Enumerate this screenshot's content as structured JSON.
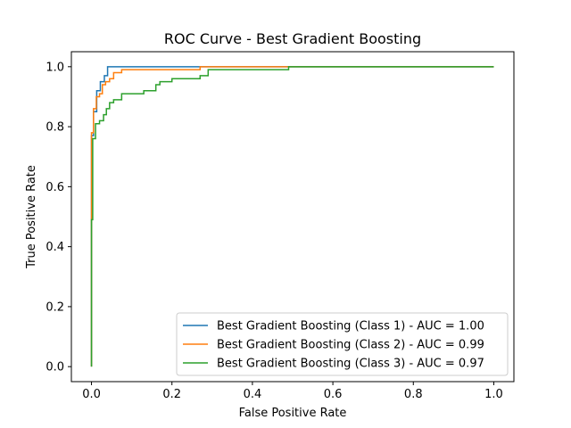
{
  "chart_data": {
    "type": "line",
    "title": "ROC Curve - Best Gradient Boosting",
    "xlabel": "False Positive Rate",
    "ylabel": "True Positive Rate",
    "xlim": [
      -0.05,
      1.05
    ],
    "ylim": [
      -0.05,
      1.05
    ],
    "xticks": [
      0.0,
      0.2,
      0.4,
      0.6,
      0.8,
      1.0
    ],
    "xtick_labels": [
      "0.0",
      "0.2",
      "0.4",
      "0.6",
      "0.8",
      "1.0"
    ],
    "yticks": [
      0.0,
      0.2,
      0.4,
      0.6,
      0.8,
      1.0
    ],
    "ytick_labels": [
      "0.0",
      "0.2",
      "0.4",
      "0.6",
      "0.8",
      "1.0"
    ],
    "grid": false,
    "legend_position": "lower-right",
    "series": [
      {
        "name": "Best Gradient Boosting (Class 1) - AUC = 1.00",
        "color": "#1f77b4",
        "x": [
          0,
          0,
          0.005,
          0.005,
          0.013,
          0.013,
          0.022,
          0.022,
          0.032,
          0.032,
          0.04,
          0.04,
          0.27,
          0.27,
          1.0
        ],
        "y": [
          0,
          0.77,
          0.77,
          0.85,
          0.85,
          0.92,
          0.92,
          0.95,
          0.95,
          0.97,
          0.97,
          1.0,
          1.0,
          1.0,
          1.0
        ]
      },
      {
        "name": "Best Gradient Boosting (Class 2) - AUC = 0.99",
        "color": "#ff7f0e",
        "x": [
          0,
          0,
          0.005,
          0.005,
          0.012,
          0.012,
          0.02,
          0.02,
          0.027,
          0.027,
          0.035,
          0.035,
          0.045,
          0.045,
          0.055,
          0.055,
          0.075,
          0.075,
          0.27,
          0.27,
          0.49,
          0.49,
          1.0
        ],
        "y": [
          0,
          0.78,
          0.78,
          0.86,
          0.86,
          0.9,
          0.9,
          0.91,
          0.91,
          0.94,
          0.94,
          0.95,
          0.95,
          0.96,
          0.96,
          0.98,
          0.98,
          0.99,
          0.99,
          1.0,
          1.0,
          1.0,
          1.0
        ]
      },
      {
        "name": "Best Gradient Boosting (Class 3) - AUC = 0.97",
        "color": "#2ca02c",
        "x": [
          0,
          0,
          0.003,
          0.003,
          0.01,
          0.01,
          0.02,
          0.02,
          0.03,
          0.03,
          0.037,
          0.037,
          0.045,
          0.045,
          0.055,
          0.055,
          0.075,
          0.075,
          0.13,
          0.13,
          0.16,
          0.16,
          0.17,
          0.17,
          0.2,
          0.2,
          0.27,
          0.27,
          0.29,
          0.29,
          0.49,
          0.49,
          1.0
        ],
        "y": [
          0,
          0.49,
          0.49,
          0.76,
          0.76,
          0.81,
          0.81,
          0.82,
          0.82,
          0.84,
          0.84,
          0.86,
          0.86,
          0.88,
          0.88,
          0.89,
          0.89,
          0.91,
          0.91,
          0.92,
          0.92,
          0.94,
          0.94,
          0.95,
          0.95,
          0.96,
          0.96,
          0.97,
          0.97,
          0.99,
          0.99,
          1.0,
          1.0
        ]
      }
    ]
  }
}
